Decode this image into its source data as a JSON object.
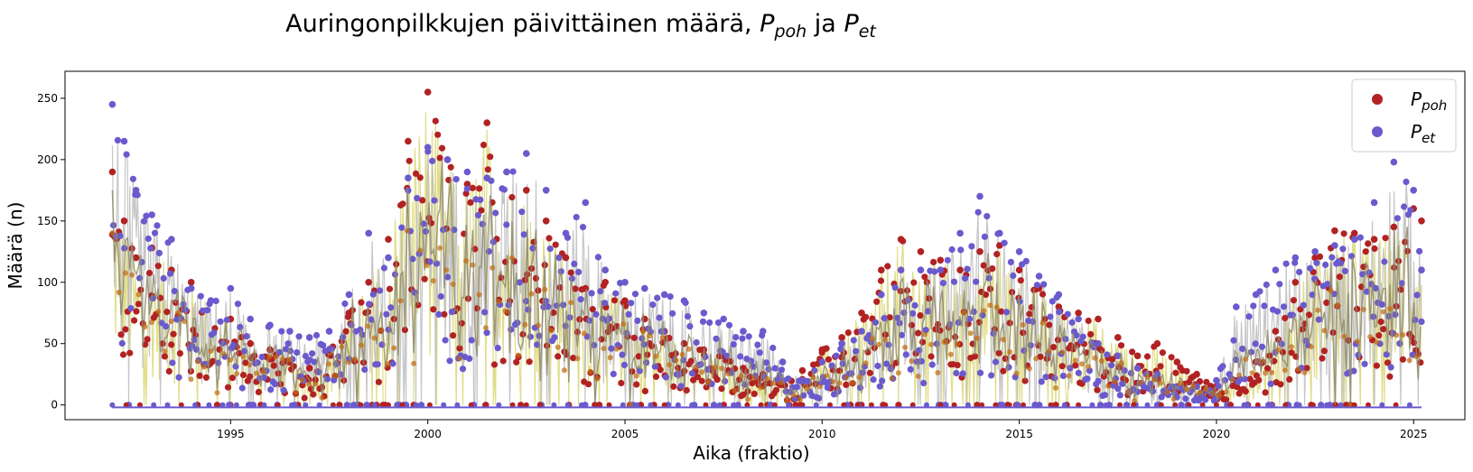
{
  "chart_data": {
    "type": "scatter",
    "title": {
      "prefix": "Auringonpilkkujen päivittäinen määrä, ",
      "sym1": "P",
      "sub1": "poh",
      "joiner": " ja ",
      "sym2": "P",
      "sub2": "et"
    },
    "xlabel": "Aika (fraktio)",
    "ylabel": "Määrä (n)",
    "xlim": [
      1990.8,
      2026.3
    ],
    "ylim": [
      -12,
      272
    ],
    "xticks": [
      1995,
      2000,
      2005,
      2010,
      2015,
      2020,
      2025
    ],
    "yticks": [
      0,
      50,
      100,
      150,
      200,
      250
    ],
    "legend_position": "upper-right",
    "colors": {
      "poh": "#b22222",
      "et": "#6a5acd",
      "overlap": "#c0690f",
      "line_poh": "#d8d36a",
      "line_et": "#b8b8b8",
      "blend": "#8f8a6a"
    },
    "series": [
      {
        "key": "poh",
        "name_sym": "P",
        "name_sub": "poh",
        "color": "#b22222",
        "envelope_x": [
          1992.0,
          1992.3,
          1992.6,
          1993.0,
          1993.5,
          1994.0,
          1994.5,
          1995.0,
          1995.5,
          1996.0,
          1996.5,
          1997.0,
          1997.5,
          1998.0,
          1998.5,
          1999.0,
          1999.5,
          2000.0,
          2000.5,
          2001.0,
          2001.5,
          2002.0,
          2002.5,
          2003.0,
          2003.5,
          2004.0,
          2004.5,
          2005.0,
          2005.5,
          2006.0,
          2006.5,
          2007.0,
          2007.5,
          2008.0,
          2008.5,
          2009.0,
          2009.5,
          2010.0,
          2010.5,
          2011.0,
          2011.5,
          2012.0,
          2012.5,
          2013.0,
          2013.5,
          2014.0,
          2014.5,
          2015.0,
          2015.5,
          2016.0,
          2016.5,
          2017.0,
          2017.5,
          2018.0,
          2018.5,
          2019.0,
          2019.5,
          2020.0,
          2020.5,
          2021.0,
          2021.5,
          2022.0,
          2022.5,
          2023.0,
          2023.5,
          2024.0,
          2024.5,
          2025.0,
          2025.2
        ],
        "envelope_y": [
          190,
          150,
          120,
          128,
          110,
          100,
          85,
          70,
          50,
          45,
          35,
          30,
          45,
          75,
          100,
          135,
          215,
          255,
          200,
          180,
          230,
          190,
          175,
          150,
          120,
          95,
          100,
          85,
          70,
          60,
          50,
          45,
          40,
          30,
          25,
          18,
          28,
          45,
          55,
          75,
          110,
          135,
          125,
          118,
          110,
          125,
          130,
          110,
          95,
          80,
          75,
          70,
          55,
          40,
          50,
          35,
          25,
          15,
          20,
          35,
          60,
          100,
          120,
          142,
          140,
          135,
          145,
          160,
          150
        ]
      },
      {
        "key": "et",
        "name_sym": "P",
        "name_sub": "et",
        "color": "#6a5acd",
        "envelope_x": [
          1992.0,
          1992.3,
          1992.6,
          1993.0,
          1993.5,
          1994.0,
          1994.5,
          1995.0,
          1995.5,
          1996.0,
          1996.5,
          1997.0,
          1997.5,
          1998.0,
          1998.5,
          1999.0,
          1999.5,
          2000.0,
          2000.5,
          2001.0,
          2001.5,
          2002.0,
          2002.5,
          2003.0,
          2003.5,
          2004.0,
          2004.5,
          2005.0,
          2005.5,
          2006.0,
          2006.5,
          2007.0,
          2007.5,
          2008.0,
          2008.5,
          2009.0,
          2009.5,
          2010.0,
          2010.5,
          2011.0,
          2011.5,
          2012.0,
          2012.5,
          2013.0,
          2013.5,
          2014.0,
          2014.5,
          2015.0,
          2015.5,
          2016.0,
          2016.5,
          2017.0,
          2017.5,
          2018.0,
          2018.5,
          2019.0,
          2019.5,
          2020.0,
          2020.5,
          2021.0,
          2021.5,
          2022.0,
          2022.5,
          2023.0,
          2023.5,
          2024.0,
          2024.5,
          2025.0,
          2025.2
        ],
        "envelope_y": [
          245,
          215,
          175,
          155,
          135,
          95,
          85,
          95,
          70,
          65,
          60,
          55,
          60,
          90,
          140,
          120,
          185,
          210,
          200,
          190,
          185,
          190,
          205,
          175,
          140,
          165,
          110,
          100,
          95,
          90,
          85,
          75,
          70,
          60,
          60,
          35,
          20,
          35,
          50,
          60,
          90,
          110,
          110,
          110,
          140,
          170,
          140,
          125,
          105,
          90,
          70,
          50,
          40,
          30,
          25,
          15,
          15,
          20,
          80,
          90,
          110,
          120,
          125,
          130,
          135,
          165,
          198,
          175,
          110
        ]
      }
    ]
  }
}
